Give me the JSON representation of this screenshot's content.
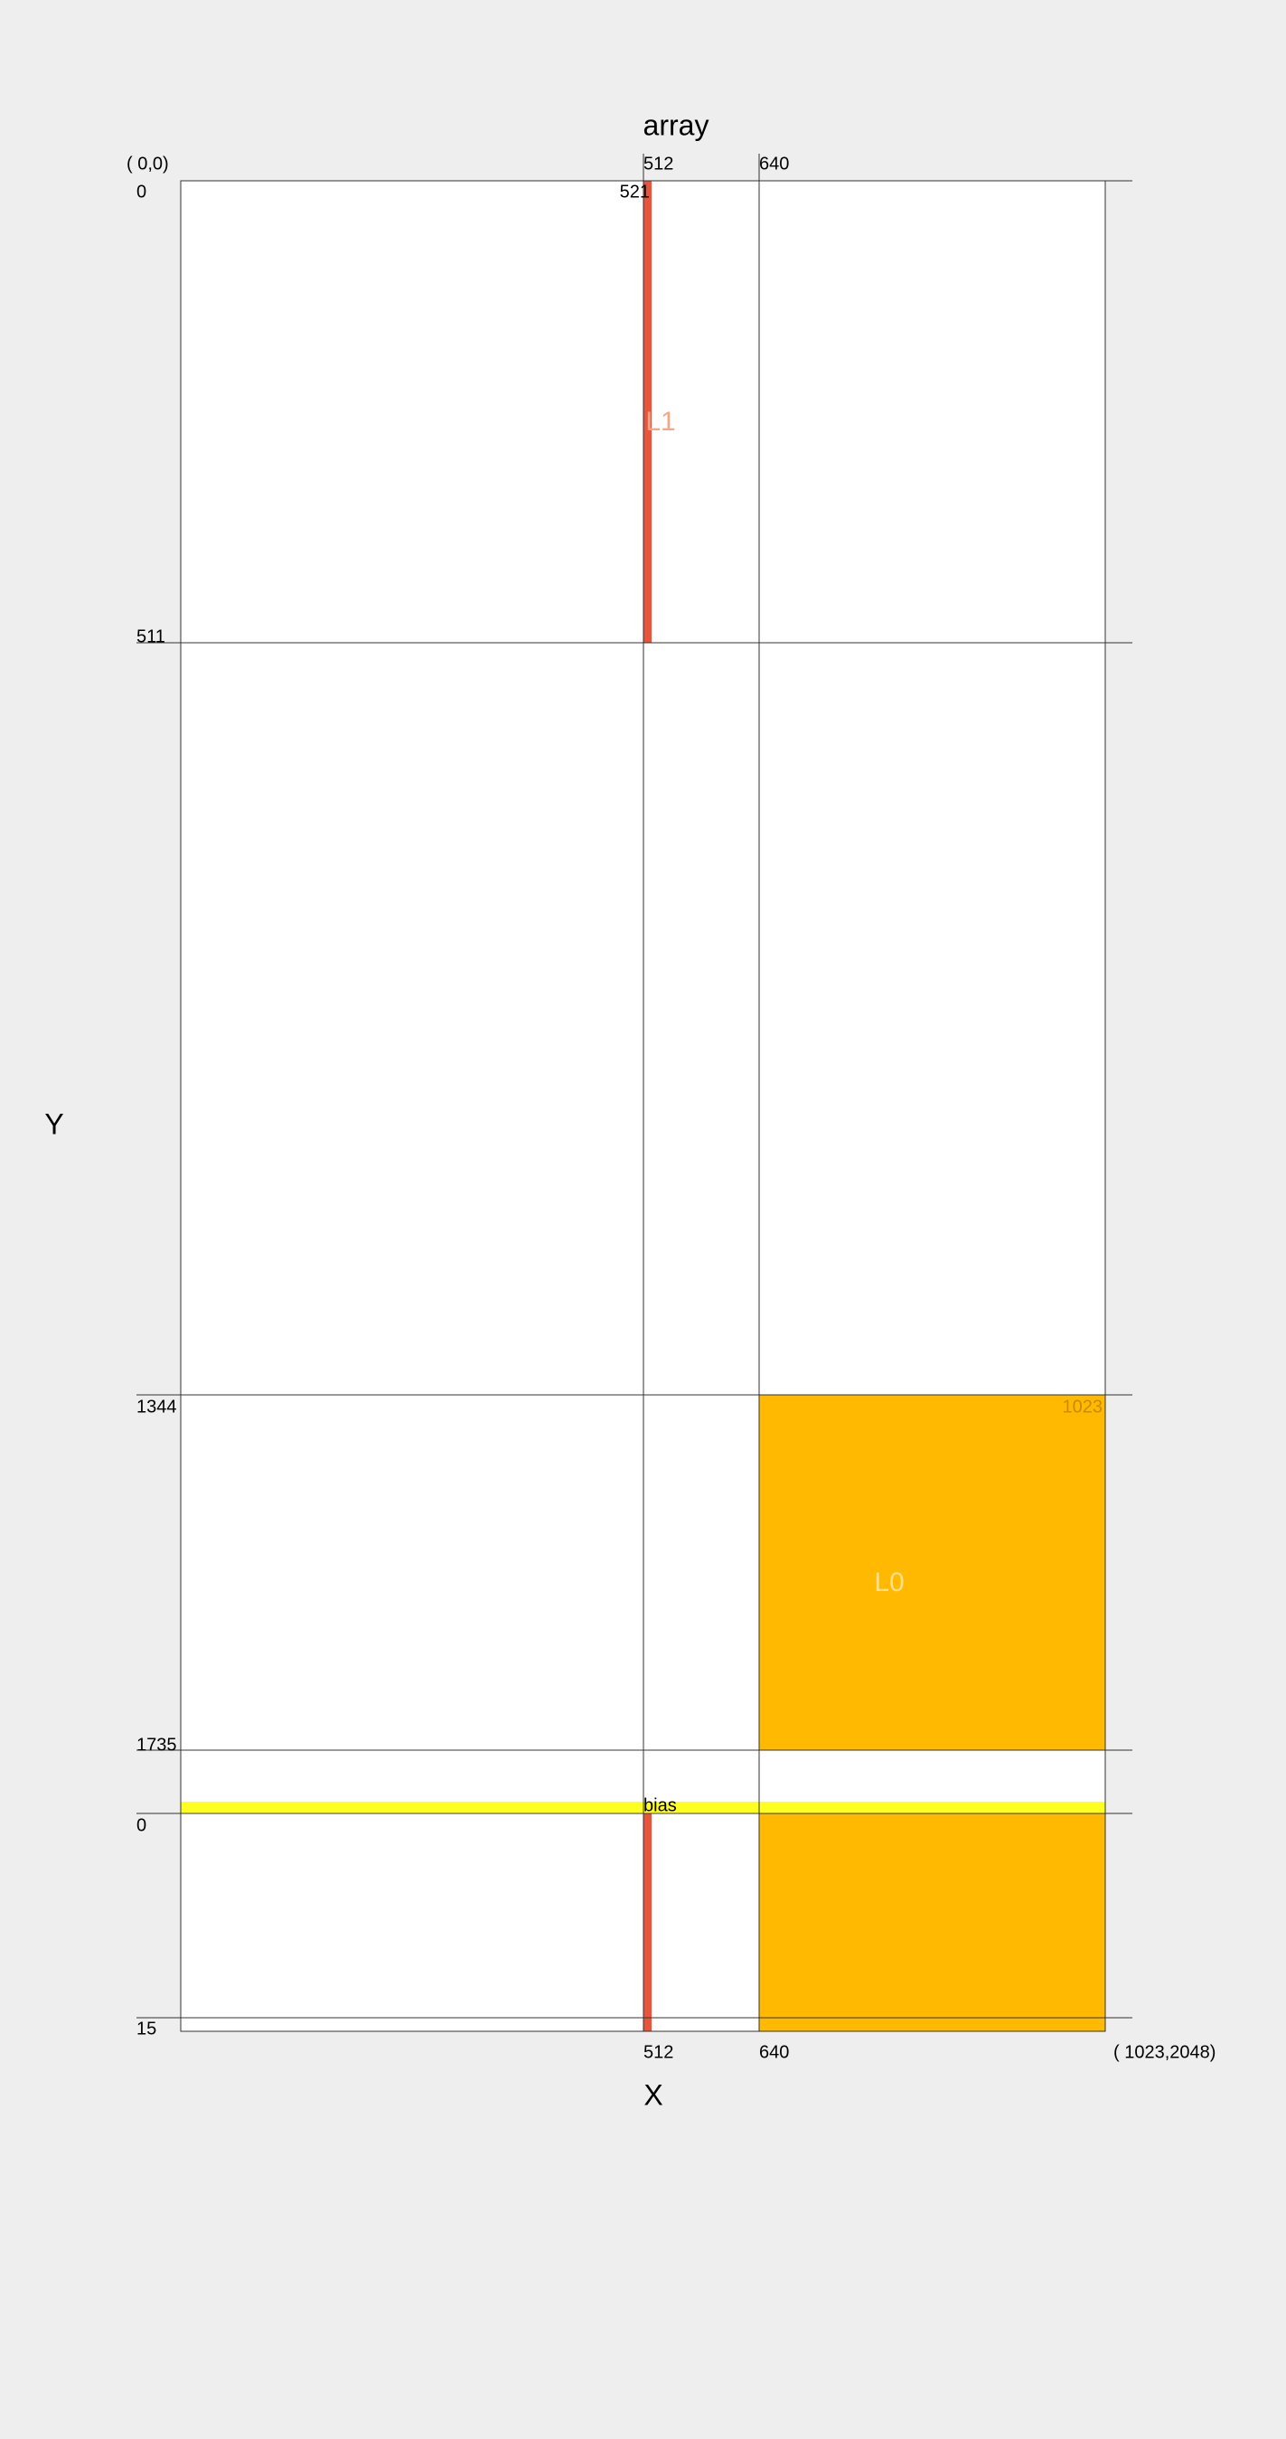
{
  "title": "array",
  "x_axis_label": "X",
  "y_axis_label": "Y",
  "corners": {
    "top_left": "( 0,0)",
    "bottom_right": "( 1023,2048)"
  },
  "top_labels": [
    "512",
    "640"
  ],
  "bottom_labels": [
    "512",
    "640"
  ],
  "left_labels": [
    "0",
    "511",
    "1344",
    "1735",
    "0",
    "15"
  ],
  "regions": {
    "l1": {
      "label": "L1",
      "end_label": "521"
    },
    "l0": {
      "label": "L0",
      "end_label": "1023"
    },
    "bias": {
      "label": "bias"
    }
  }
}
